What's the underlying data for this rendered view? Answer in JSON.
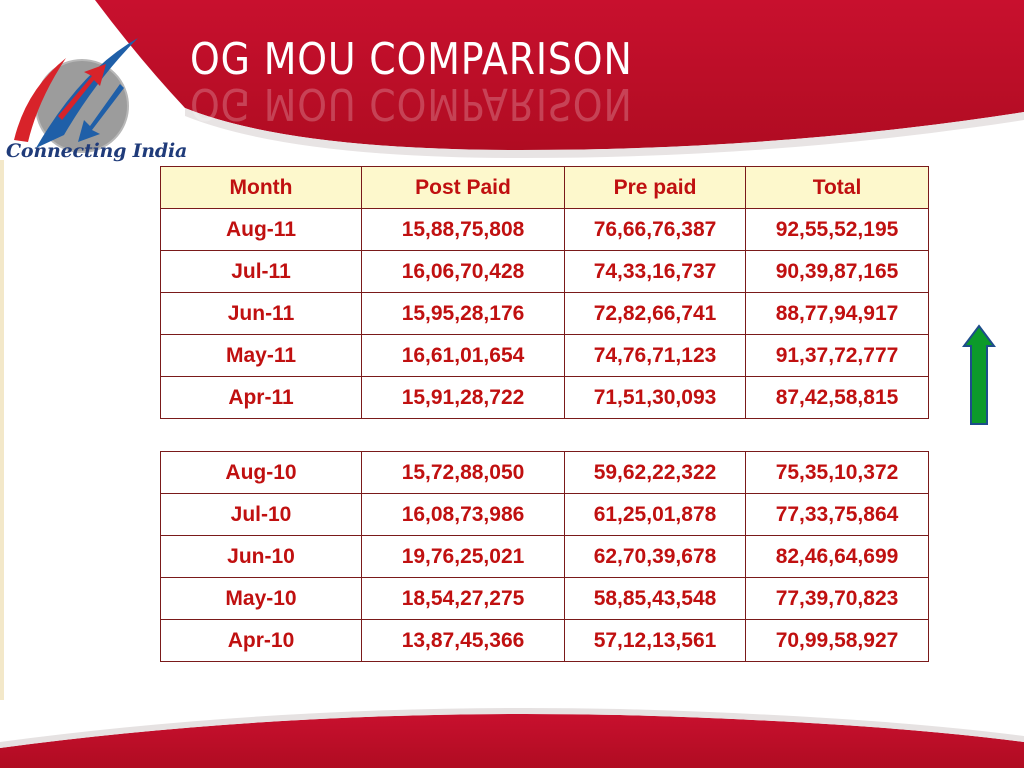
{
  "title": "OG MOU COMPARISON",
  "logo": {
    "text": "Connecting India",
    "accent_red": "#d8232a",
    "accent_blue": "#1f5fa8"
  },
  "colors": {
    "header_red": "#c8102e",
    "text_red": "#c01010",
    "header_fill": "#fdf8cc",
    "arrow_green": "#0c9a2a"
  },
  "table": {
    "columns": [
      "Month",
      "Post Paid",
      "Pre paid",
      "Total"
    ],
    "rows_2011": [
      [
        "Aug-11",
        "15,88,75,808",
        "76,66,76,387",
        "92,55,52,195"
      ],
      [
        "Jul-11",
        "16,06,70,428",
        "74,33,16,737",
        "90,39,87,165"
      ],
      [
        "Jun-11",
        "15,95,28,176",
        "72,82,66,741",
        "88,77,94,917"
      ],
      [
        "May-11",
        "16,61,01,654",
        "74,76,71,123",
        "91,37,72,777"
      ],
      [
        "Apr-11",
        "15,91,28,722",
        "71,51,30,093",
        "87,42,58,815"
      ]
    ],
    "rows_2010": [
      [
        "Aug-10",
        "15,72,88,050",
        "59,62,22,322",
        "75,35,10,372"
      ],
      [
        "Jul-10",
        "16,08,73,986",
        "61,25,01,878",
        "77,33,75,864"
      ],
      [
        "Jun-10",
        "19,76,25,021",
        "62,70,39,678",
        "82,46,64,699"
      ],
      [
        "May-10",
        "18,54,27,275",
        "58,85,43,548",
        "77,39,70,823"
      ],
      [
        "Apr-10",
        "13,87,45,366",
        "57,12,13,561",
        "70,99,58,927"
      ]
    ]
  },
  "indicator": {
    "icon": "up-arrow-icon",
    "direction": "up"
  }
}
